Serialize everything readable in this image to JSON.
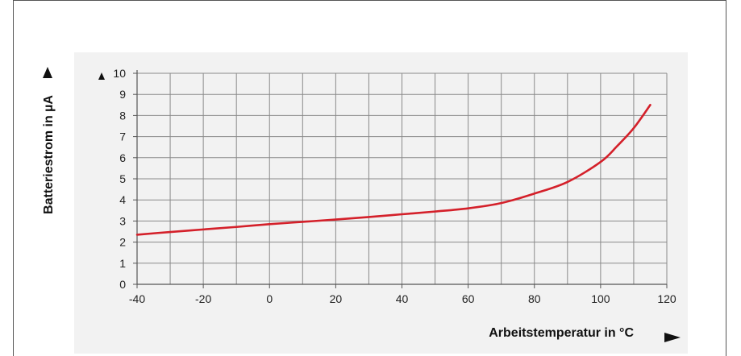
{
  "chart_data": {
    "type": "line",
    "xlabel": "Arbeitstemperatur in °C",
    "ylabel": "Batteriestrom in µA",
    "xlim": [
      -40,
      120
    ],
    "ylim": [
      0,
      10
    ],
    "x_ticks": [
      -40,
      -20,
      0,
      20,
      40,
      60,
      80,
      100,
      120
    ],
    "y_ticks": [
      0,
      1,
      2,
      3,
      4,
      5,
      6,
      7,
      8,
      9,
      10
    ],
    "grid": true,
    "series": [
      {
        "color": "#d4202a",
        "x": [
          -40,
          -30,
          -20,
          -10,
          0,
          10,
          20,
          30,
          40,
          50,
          60,
          70,
          80,
          90,
          100,
          105,
          110,
          115
        ],
        "y": [
          2.35,
          2.48,
          2.6,
          2.72,
          2.85,
          2.96,
          3.07,
          3.19,
          3.32,
          3.45,
          3.6,
          3.85,
          4.3,
          4.85,
          5.8,
          6.55,
          7.4,
          8.5
        ]
      }
    ]
  },
  "colors": {
    "panel_bg": "#f2f2f2",
    "grid": "#8a8a8a",
    "axis": "#555555",
    "line": "#d4202a"
  }
}
